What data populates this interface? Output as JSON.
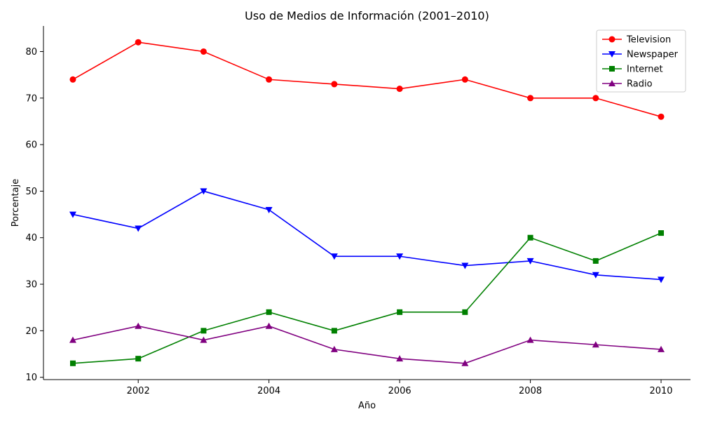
{
  "chart_data": {
    "type": "line",
    "title": "Uso de Medios de Información (2001–2010)",
    "xlabel": "Año",
    "ylabel": "Porcentaje",
    "x": [
      2001,
      2002,
      2003,
      2004,
      2005,
      2006,
      2007,
      2008,
      2009,
      2010
    ],
    "xlim": [
      2000.55,
      2010.45
    ],
    "ylim": [
      9.5,
      85.5
    ],
    "xticks": [
      2002,
      2004,
      2006,
      2008,
      2010
    ],
    "yticks": [
      10,
      20,
      30,
      40,
      50,
      60,
      70,
      80
    ],
    "grid": false,
    "legend_position": "top-right",
    "series": [
      {
        "name": "Television",
        "color": "#ff0000",
        "marker": "circle",
        "values": [
          74,
          82,
          80,
          74,
          73,
          72,
          74,
          70,
          70,
          66
        ]
      },
      {
        "name": "Newspaper",
        "color": "#0000ff",
        "marker": "triangle-down",
        "values": [
          45,
          42,
          50,
          46,
          36,
          36,
          34,
          35,
          32,
          31
        ]
      },
      {
        "name": "Internet",
        "color": "#008000",
        "marker": "square",
        "values": [
          13,
          14,
          20,
          24,
          20,
          24,
          24,
          40,
          35,
          41
        ]
      },
      {
        "name": "Radio",
        "color": "#800080",
        "marker": "triangle-up",
        "values": [
          18,
          21,
          18,
          21,
          16,
          14,
          13,
          18,
          17,
          16
        ]
      }
    ]
  }
}
